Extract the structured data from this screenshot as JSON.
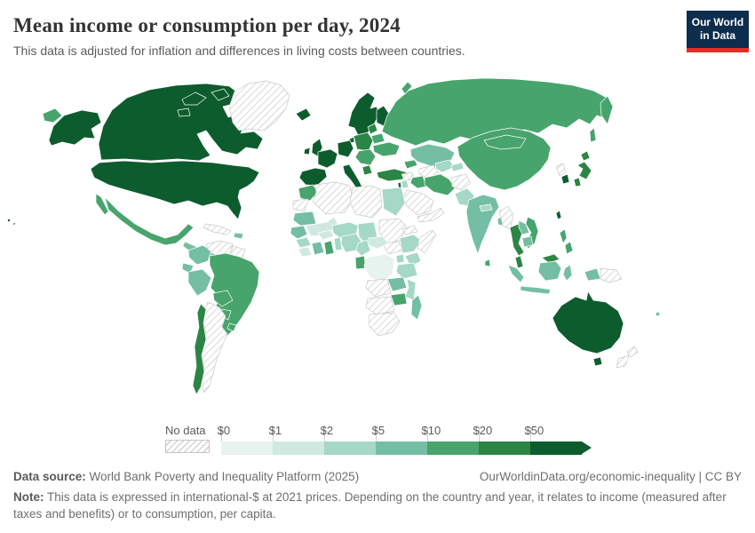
{
  "header": {
    "title": "Mean income or consumption per day, 2024",
    "subtitle": "This data is adjusted for inflation and differences in living costs between countries.",
    "logo": {
      "line1": "Our World",
      "line2": "in Data",
      "bg": "#0d2d4d",
      "underline": "#dc3023"
    }
  },
  "legend": {
    "no_data_label": "No data",
    "ticks": [
      "$0",
      "$1",
      "$2",
      "$5",
      "$10",
      "$20",
      "$50"
    ],
    "bin_colors": [
      "#e7f3ef",
      "#cfe9e0",
      "#a5d8c6",
      "#74bfa3",
      "#47a46c",
      "#2b8544",
      "#0d5c2e"
    ]
  },
  "map": {
    "ocean_color": "#ffffff",
    "border_color": "#ffffff",
    "no_data_border": "#c9c9c9",
    "hatch_line_color": "#d2d2d2",
    "countries": {
      "usa": 6,
      "alaska": 6,
      "hawaii": 6,
      "canada": 6,
      "arctic-islands": 6,
      "greenland": "no-data",
      "mexico": 4,
      "central-america": 3,
      "cuba": "no-data",
      "hispaniola": 3,
      "colombia": 3,
      "venezuela": "no-data",
      "guyanas": "no-data",
      "ecuador": 3,
      "peru": 3,
      "brazil": 4,
      "bolivia": 4,
      "paraguay": 4,
      "uruguay": 4,
      "argentina": "no-data",
      "chile": 5,
      "iceland": 6,
      "uk": 6,
      "ireland": 6,
      "scandinavia": 6,
      "finland": 6,
      "denmark": 6,
      "germany-central": 6,
      "france": 6,
      "iberia": 6,
      "italy": 6,
      "east-europe": 5,
      "baltics": 5,
      "belarus": 4,
      "ukraine": 4,
      "romania-balkans": 4,
      "greece": 5,
      "turkey": 5,
      "caucasus": 4,
      "russia": 4,
      "chukotka": 4,
      "kazakhstan": 3,
      "turkmenistan": "no-data",
      "uzbekistan": 2,
      "kyrgyz-tajik": 2,
      "afghanistan": "no-data",
      "pakistan": 2,
      "iran": 4,
      "iraq": 4,
      "syria": "no-data",
      "saudi": "no-data",
      "yemen-oman": "no-data",
      "israel": 6,
      "jordan": 2,
      "morocco": 4,
      "w-sahara": "no-data",
      "algeria": "no-data",
      "libya": "no-data",
      "egypt": 2,
      "mauritania": 3,
      "mali": 1,
      "niger": 2,
      "chad": 2,
      "sudan": "no-data",
      "south-sudan": "no-data",
      "eritrea": "no-data",
      "ethiopia": 2,
      "somalia": "no-data",
      "senegal": 3,
      "guinea": 2,
      "sierra-liberia": 1,
      "cote-divoire": 3,
      "ghana": 4,
      "togo-benin": 2,
      "burkina": 1,
      "nigeria": 2,
      "cameroon": 2,
      "car": 1,
      "drc": 0,
      "gabon-congo": 4,
      "uganda": 2,
      "kenya": 2,
      "tanzania": 2,
      "angola": "no-data",
      "zambia": 3,
      "malawi-mozambique": 2,
      "zimbabwe": 4,
      "namibia-botswana": "no-data",
      "south-africa": "no-data",
      "madagascar": 3,
      "india": 3,
      "nepal": 2,
      "bangladesh": 3,
      "sri-lanka": 4,
      "china": 4,
      "mongolia": 4,
      "myanmar": "no-data",
      "thailand": 5,
      "laos": 3,
      "vietnam": 4,
      "cambodia": 3,
      "malaysia": 5,
      "indonesia": 3,
      "png": "no-data",
      "philippines": 4,
      "taiwan": 6,
      "north-korea": "no-data",
      "south-korea": 6,
      "japan": 5,
      "australia": 6,
      "new-zealand": "no-data",
      "fiji": 3
    }
  },
  "footer": {
    "source_label": "Data source:",
    "source_text": " World Bank Poverty and Inequality Platform (2025)",
    "link_text": "OurWorldinData.org/economic-inequality | CC BY",
    "note_label": "Note:",
    "note_text": " This data is expressed in international-$ at 2021 prices. Depending on the country and year, it relates to income (measured after taxes and benefits) or to consumption, per capita."
  }
}
